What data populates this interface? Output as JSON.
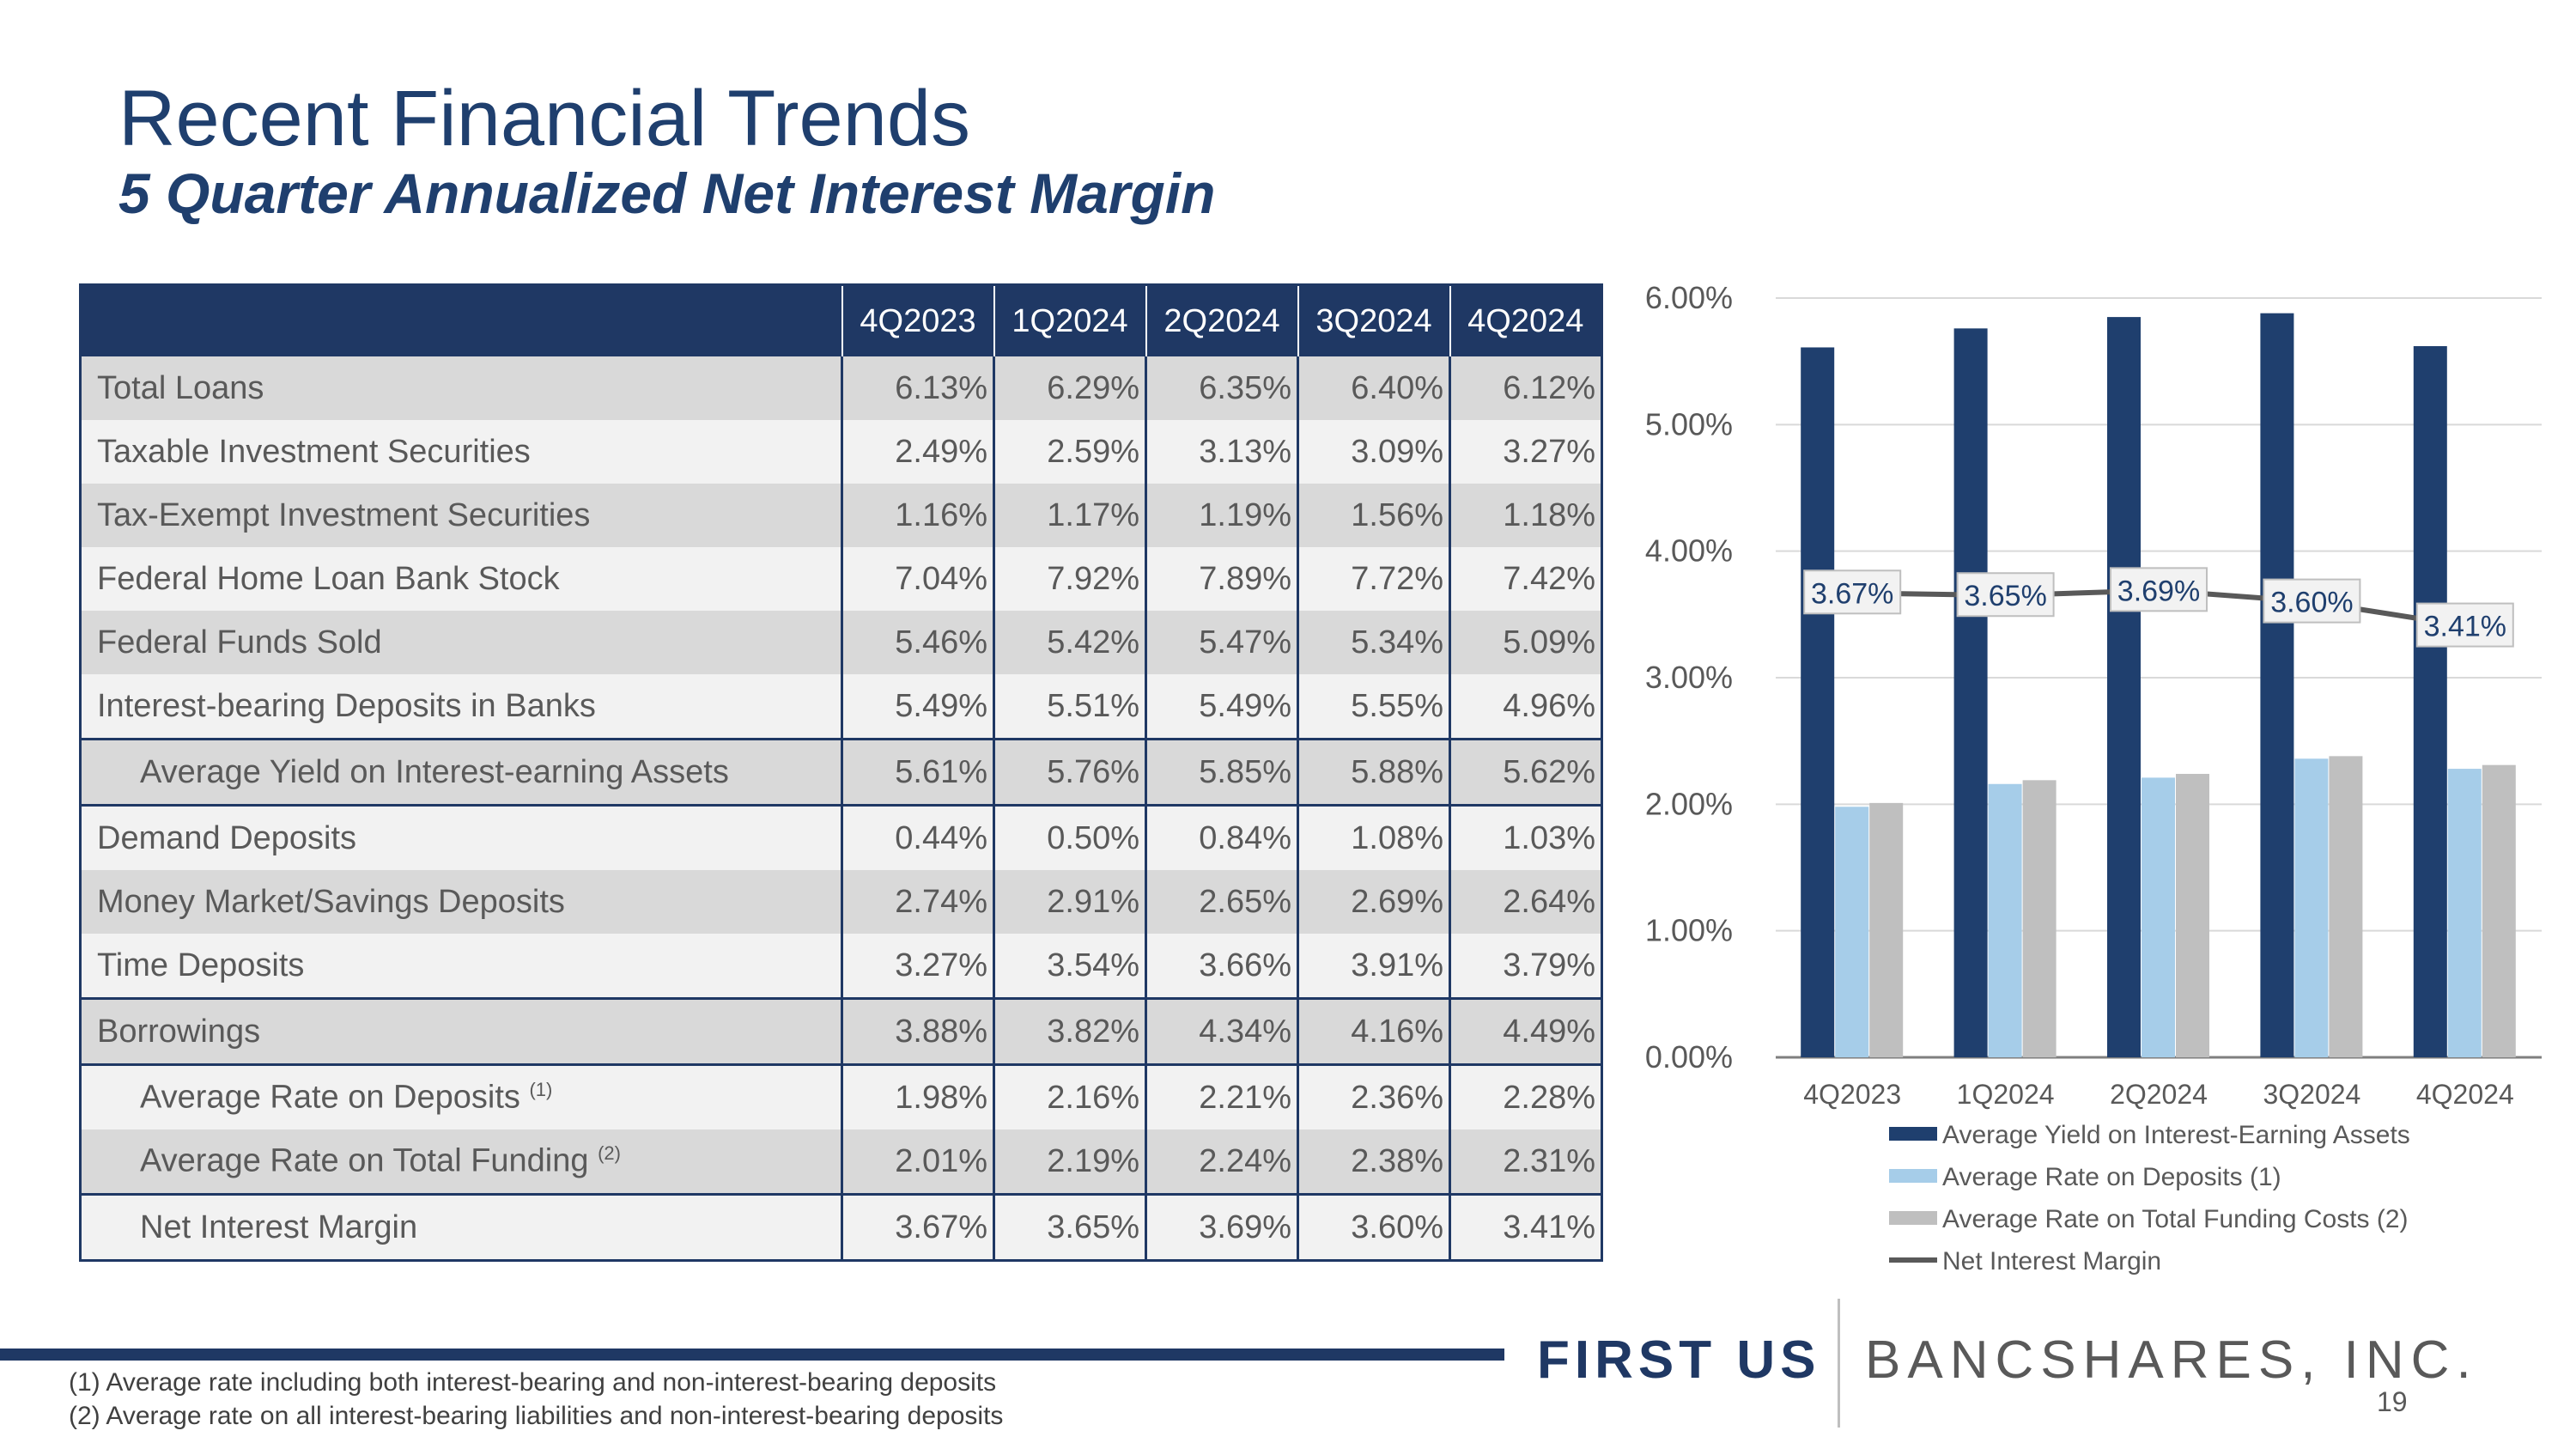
{
  "header": {
    "title": "Recent Financial Trends",
    "subtitle": "5 Quarter Annualized Net Interest Margin"
  },
  "table": {
    "columns": [
      "4Q2023",
      "1Q2024",
      "2Q2024",
      "3Q2024",
      "4Q2024"
    ],
    "rows": [
      {
        "label": "Total Loans",
        "values": [
          "6.13%",
          "6.29%",
          "6.35%",
          "6.40%",
          "6.12%"
        ]
      },
      {
        "label": "Taxable Investment Securities",
        "values": [
          "2.49%",
          "2.59%",
          "3.13%",
          "3.09%",
          "3.27%"
        ]
      },
      {
        "label": "Tax-Exempt Investment Securities",
        "values": [
          "1.16%",
          "1.17%",
          "1.19%",
          "1.56%",
          "1.18%"
        ]
      },
      {
        "label": "Federal Home Loan Bank Stock",
        "values": [
          "7.04%",
          "7.92%",
          "7.89%",
          "7.72%",
          "7.42%"
        ]
      },
      {
        "label": "Federal Funds Sold",
        "values": [
          "5.46%",
          "5.42%",
          "5.47%",
          "5.34%",
          "5.09%"
        ]
      },
      {
        "label": "Interest-bearing Deposits in Banks",
        "values": [
          "5.49%",
          "5.51%",
          "5.49%",
          "5.55%",
          "4.96%"
        ]
      },
      {
        "label": "Average Yield on Interest-earning Assets",
        "values": [
          "5.61%",
          "5.76%",
          "5.85%",
          "5.88%",
          "5.62%"
        ]
      },
      {
        "label": "Demand Deposits",
        "values": [
          "0.44%",
          "0.50%",
          "0.84%",
          "1.08%",
          "1.03%"
        ]
      },
      {
        "label": "Money Market/Savings Deposits",
        "values": [
          "2.74%",
          "2.91%",
          "2.65%",
          "2.69%",
          "2.64%"
        ]
      },
      {
        "label": "Time Deposits",
        "values": [
          "3.27%",
          "3.54%",
          "3.66%",
          "3.91%",
          "3.79%"
        ]
      },
      {
        "label": "Borrowings",
        "values": [
          "3.88%",
          "3.82%",
          "4.34%",
          "4.16%",
          "4.49%"
        ]
      },
      {
        "label": "Average Rate on Deposits",
        "sup": "(1)",
        "values": [
          "1.98%",
          "2.16%",
          "2.21%",
          "2.36%",
          "2.28%"
        ]
      },
      {
        "label": "Average Rate on Total Funding",
        "sup": "(2)",
        "values": [
          "2.01%",
          "2.19%",
          "2.24%",
          "2.38%",
          "2.31%"
        ]
      },
      {
        "label": "Net Interest Margin",
        "values": [
          "3.67%",
          "3.65%",
          "3.69%",
          "3.60%",
          "3.41%"
        ]
      }
    ]
  },
  "chart_data": {
    "type": "bar",
    "categories": [
      "4Q2023",
      "1Q2024",
      "2Q2024",
      "3Q2024",
      "4Q2024"
    ],
    "ylim": [
      0,
      6
    ],
    "y_ticks": [
      "0.00%",
      "1.00%",
      "2.00%",
      "3.00%",
      "4.00%",
      "5.00%",
      "6.00%"
    ],
    "grid": true,
    "legend_position": "bottom",
    "series": [
      {
        "name": "Average Yield on Interest-Earning Assets",
        "kind": "bar",
        "color": "#1f3f6e",
        "values": [
          5.61,
          5.76,
          5.85,
          5.88,
          5.62
        ]
      },
      {
        "name": "Average Rate on Deposits (1)",
        "kind": "bar",
        "color": "#a6cde9",
        "values": [
          1.98,
          2.16,
          2.21,
          2.36,
          2.28
        ]
      },
      {
        "name": "Average Rate on Total Funding Costs (2)",
        "kind": "bar",
        "color": "#bfbfbf",
        "values": [
          2.01,
          2.19,
          2.24,
          2.38,
          2.31
        ]
      },
      {
        "name": "Net Interest Margin",
        "kind": "line",
        "color": "#595959",
        "values": [
          3.67,
          3.65,
          3.69,
          3.6,
          3.41
        ],
        "data_labels": [
          "3.67%",
          "3.65%",
          "3.69%",
          "3.60%",
          "3.41%"
        ]
      }
    ]
  },
  "footer": {
    "logo_first": "FIRST US",
    "logo_second": "BANCSHARES, INC.",
    "page_number": "19",
    "footnotes": [
      "(1)   Average rate including both interest-bearing and non-interest-bearing deposits",
      "(2)   Average rate on all interest-bearing liabilities and non-interest-bearing deposits"
    ]
  },
  "colors": {
    "navy": "#1f3864",
    "title_blue": "#1f3f6e",
    "row_shade": "#d9d9d9",
    "row_light": "#f2f2f2"
  }
}
